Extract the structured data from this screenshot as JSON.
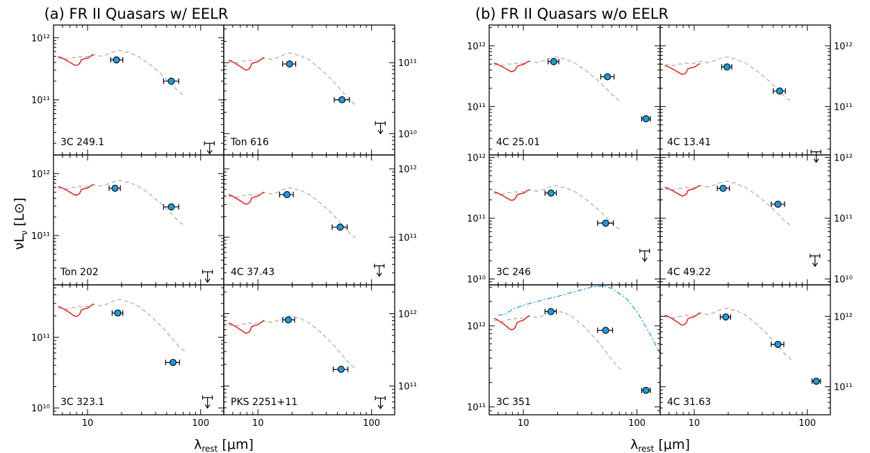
{
  "titles": {
    "left": "(a) FR II Quasars w/ EELR",
    "right": "(b) FR II Quasars w/o EELR"
  },
  "axes": {
    "xlabel": {
      "main": "λ",
      "sub": "rest",
      "unit": "[μm]"
    },
    "ylabel": {
      "main": "νL",
      "sub": "ν",
      "unit": "[L⊙]"
    }
  },
  "colors": {
    "irs_spectrum": "#e3120b",
    "template": "#b4b4b4",
    "photometry": "#1b9be0",
    "alt_model": "#1fa0e0"
  },
  "chart_data": {
    "type": "scatter",
    "x_scale": "log",
    "y_scale": "log",
    "xlim": [
      5,
      160
    ],
    "panels": [
      {
        "id": "a1",
        "label": "3C 249.1",
        "ylim": [
          13000000000.0,
          1600000000000.0
        ],
        "ytick_labels": [
          "10¹²",
          "10¹¹"
        ],
        "ytick_vals": [
          1000000000000.0,
          100000000000.0
        ],
        "ytick_side": "left",
        "points": [
          {
            "x": 18,
            "y": 440000000000.0,
            "xerr": [
              16,
              20.5
            ]
          },
          {
            "x": 55,
            "y": 200000000000.0,
            "xerr": [
              47,
              64
            ]
          }
        ],
        "upper_limit": {
          "x": 120,
          "y": 20000000000.0,
          "xerr": [
            108,
            132
          ]
        },
        "spectrum_scale": 1.0,
        "template_scale": 1.0
      },
      {
        "id": "a2",
        "label": "Ton 616",
        "ylim": [
          5000000000.0,
          340000000000.0
        ],
        "ytick_labels": [
          "10¹¹",
          "10¹⁰"
        ],
        "ytick_vals": [
          100000000000.0,
          10000000000.0
        ],
        "ytick_side": "right",
        "points": [
          {
            "x": 19,
            "y": 96000000000.0,
            "xerr": [
              16.5,
              21.5
            ]
          },
          {
            "x": 55,
            "y": 30000000000.0,
            "xerr": [
              47,
              64
            ]
          }
        ],
        "upper_limit": {
          "x": 120,
          "y": 14000000000.0,
          "xerr": [
            108,
            132
          ]
        },
        "spectrum_scale": 0.22,
        "template_scale": 0.22
      },
      {
        "id": "a3",
        "label": "Ton 202",
        "ylim": [
          16000000000.0,
          2000000000000.0
        ],
        "ytick_labels": [
          "10¹²",
          "10¹¹"
        ],
        "ytick_vals": [
          1000000000000.0,
          100000000000.0
        ],
        "ytick_side": "left",
        "points": [
          {
            "x": 17.5,
            "y": 580000000000.0,
            "xerr": [
              15.5,
              19.5
            ]
          },
          {
            "x": 55,
            "y": 290000000000.0,
            "xerr": [
              47,
              64
            ]
          }
        ],
        "upper_limit": {
          "x": 115,
          "y": 26000000000.0,
          "xerr": [
            104,
            127
          ]
        },
        "spectrum_scale": 1.25,
        "template_scale": 1.25
      },
      {
        "id": "a4",
        "label": "4C 37.43",
        "ylim": [
          20000000000.0,
          1600000000000.0
        ],
        "ytick_labels": [
          "10¹²",
          "10¹¹"
        ],
        "ytick_vals": [
          1000000000000.0,
          100000000000.0
        ],
        "ytick_side": "right",
        "points": [
          {
            "x": 18,
            "y": 420000000000.0,
            "xerr": [
              15.5,
              20.5
            ]
          },
          {
            "x": 53,
            "y": 140000000000.0,
            "xerr": [
              45,
              61
            ]
          }
        ],
        "upper_limit": {
          "x": 117,
          "y": 38000000000.0,
          "xerr": [
            106,
            129
          ]
        },
        "spectrum_scale": 0.85,
        "template_scale": 0.85
      },
      {
        "id": "a5",
        "label": "3C 323.1",
        "ylim": [
          8000000000.0,
          550000000000.0
        ],
        "ytick_labels": [
          "10¹¹",
          "10¹⁰"
        ],
        "ytick_vals": [
          100000000000.0,
          10000000000.0
        ],
        "ytick_side": "left",
        "points": [
          {
            "x": 18.5,
            "y": 220000000000.0,
            "xerr": [
              16.5,
              20.5
            ]
          },
          {
            "x": 57,
            "y": 44000000000.0,
            "xerr": [
              49,
              65
            ]
          }
        ],
        "upper_limit": {
          "x": 115,
          "y": 14000000000.0,
          "xerr": [
            104,
            127
          ]
        },
        "spectrum_scale": 0.55,
        "template_scale": 0.55
      },
      {
        "id": "a6",
        "label": "PKS 2251+11",
        "ylim": [
          40000000000.0,
          2500000000000.0
        ],
        "ytick_labels": [
          "10¹²",
          "10¹¹"
        ],
        "ytick_vals": [
          1000000000000.0,
          100000000000.0
        ],
        "ytick_side": "right",
        "points": [
          {
            "x": 18.5,
            "y": 820000000000.0,
            "xerr": [
              16.5,
              21
            ]
          },
          {
            "x": 54,
            "y": 170000000000.0,
            "xerr": [
              46,
              62
            ]
          }
        ],
        "upper_limit": {
          "x": 120,
          "y": 68000000000.0,
          "xerr": [
            108,
            132
          ]
        },
        "spectrum_scale": 1.5,
        "template_scale": 1.5
      },
      {
        "id": "b1",
        "label": "4C 25.01",
        "ylim": [
          16000000000.0,
          2200000000000.0
        ],
        "ytick_labels": [
          "10¹²",
          "10¹¹"
        ],
        "ytick_vals": [
          1000000000000.0,
          100000000000.0
        ],
        "ytick_side": "left",
        "points": [
          {
            "x": 18.5,
            "y": 550000000000.0,
            "xerr": [
              16.5,
              20.5
            ]
          },
          {
            "x": 55,
            "y": 310000000000.0,
            "xerr": [
              48,
              63
            ]
          },
          {
            "x": 120,
            "y": 63000000000.0,
            "xerr": [
              110,
              131
            ]
          }
        ],
        "upper_limit": null,
        "spectrum_scale": 1.05,
        "template_scale": 1.05
      },
      {
        "id": "b2",
        "label": "4C 13.41",
        "ylim": [
          16000000000.0,
          2200000000000.0
        ],
        "ytick_labels": [
          "10¹²",
          "10¹¹"
        ],
        "ytick_vals": [
          1000000000000.0,
          100000000000.0
        ],
        "ytick_side": "right",
        "points": [
          {
            "x": 19.5,
            "y": 450000000000.0,
            "xerr": [
              17.5,
              21.5
            ]
          },
          {
            "x": 57,
            "y": 180000000000.0,
            "xerr": [
              50,
              64
            ]
          }
        ],
        "upper_limit": {
          "x": 120,
          "y": 18000000000.0,
          "xerr": [
            108,
            132
          ]
        },
        "spectrum_scale": 0.95,
        "template_scale": 1.05
      },
      {
        "id": "b3",
        "label": "3C 246",
        "ylim": [
          8000000000.0,
          1100000000000.0
        ],
        "ytick_labels": [
          "10¹²",
          "10¹¹",
          "10¹⁰"
        ],
        "ytick_vals": [
          1000000000000.0,
          100000000000.0,
          10000000000.0
        ],
        "ytick_side": "left",
        "points": [
          {
            "x": 17.5,
            "y": 260000000000.0,
            "xerr": [
              15.5,
              19.5
            ]
          },
          {
            "x": 53,
            "y": 83000000000.0,
            "xerr": [
              45,
              62
            ]
          }
        ],
        "upper_limit": {
          "x": 117,
          "y": 29000000000.0,
          "xerr": [
            106,
            129
          ]
        },
        "spectrum_scale": 0.55,
        "template_scale": 0.55
      },
      {
        "id": "b4",
        "label": "4C 49.22",
        "ylim": [
          8000000000.0,
          1100000000000.0
        ],
        "ytick_labels": [
          "10¹²",
          "10¹¹",
          "10¹⁰"
        ],
        "ytick_vals": [
          1000000000000.0,
          100000000000.0,
          10000000000.0
        ],
        "ytick_side": "right",
        "points": [
          {
            "x": 18,
            "y": 310000000000.0,
            "xerr": [
              16,
              20.5
            ]
          },
          {
            "x": 55,
            "y": 170000000000.0,
            "xerr": [
              48,
              63
            ]
          }
        ],
        "upper_limit": {
          "x": 117,
          "y": 24000000000.0,
          "xerr": [
            106,
            129
          ]
        },
        "spectrum_scale": 0.65,
        "template_scale": 0.65
      },
      {
        "id": "b5",
        "label": "3C 351",
        "ylim": [
          80000000000.0,
          3200000000000.0
        ],
        "ytick_labels": [
          "10¹²",
          "10¹¹"
        ],
        "ytick_vals": [
          1000000000000.0,
          100000000000.0
        ],
        "ytick_side": "left",
        "points": [
          {
            "x": 17.5,
            "y": 1500000000000.0,
            "xerr": [
              15.5,
              19.5
            ]
          },
          {
            "x": 53,
            "y": 880000000000.0,
            "xerr": [
              45,
              61
            ]
          },
          {
            "x": 120,
            "y": 160000000000.0,
            "xerr": [
              110,
              131
            ]
          }
        ],
        "upper_limit": null,
        "spectrum_scale": 2.5,
        "template_scale": 2.5,
        "has_alt_model": true
      },
      {
        "id": "b6",
        "label": "4C 31.63",
        "ylim": [
          40000000000.0,
          2800000000000.0
        ],
        "ytick_labels": [
          "10¹²",
          "10¹¹"
        ],
        "ytick_vals": [
          1000000000000.0,
          100000000000.0
        ],
        "ytick_side": "right",
        "points": [
          {
            "x": 19,
            "y": 980000000000.0,
            "xerr": [
              17,
              21
            ]
          },
          {
            "x": 55,
            "y": 400000000000.0,
            "xerr": [
              48,
              62
            ]
          },
          {
            "x": 120,
            "y": 120000000000.0,
            "xerr": [
              110,
              131
            ]
          }
        ],
        "upper_limit": null,
        "spectrum_scale": 2.1,
        "template_scale": 2.1
      }
    ],
    "xtick_labels": [
      "10",
      "100"
    ],
    "xtick_vals": [
      10,
      100
    ]
  }
}
